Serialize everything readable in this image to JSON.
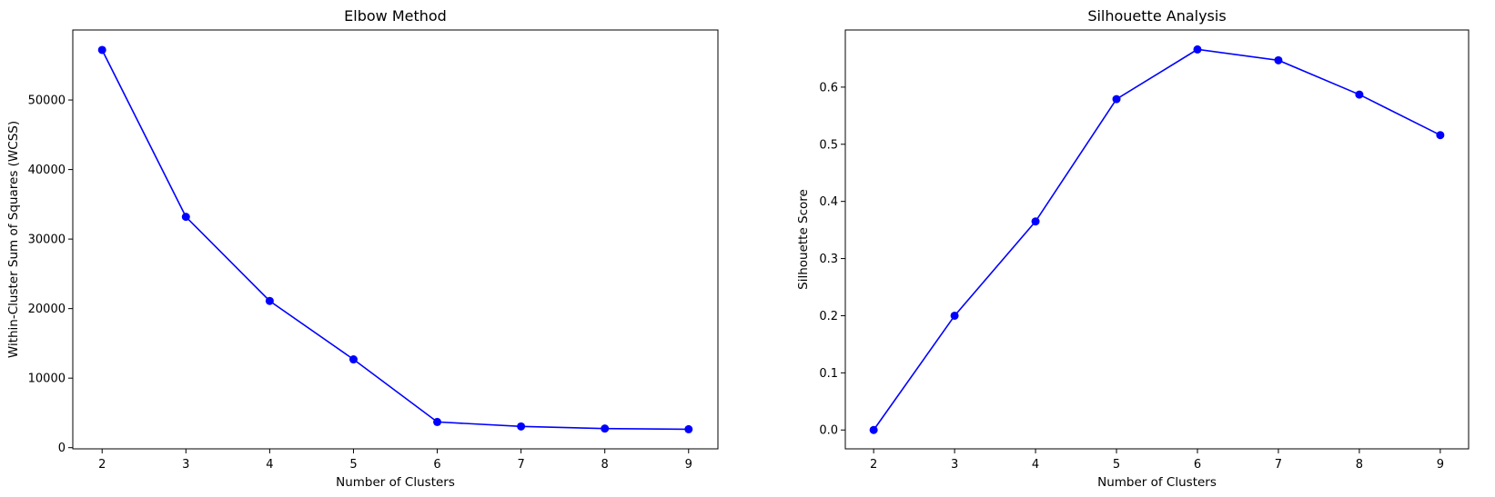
{
  "chart_data": [
    {
      "type": "line",
      "title": "Elbow Method",
      "xlabel": "Number of Clusters",
      "ylabel": "Within-Cluster Sum of Squares (WCSS)",
      "x": [
        2,
        3,
        4,
        5,
        6,
        7,
        8,
        9
      ],
      "series": [
        {
          "values": [
            57200,
            33200,
            21100,
            12700,
            3700,
            3050,
            2750,
            2650
          ],
          "color": "#0000ff",
          "marker": "circle"
        }
      ],
      "xticks": [
        2,
        3,
        4,
        5,
        6,
        7,
        8,
        9
      ],
      "yticks": [
        0,
        10000,
        20000,
        30000,
        40000,
        50000
      ],
      "xlim": [
        1.65,
        9.35
      ],
      "ylim": [
        -170,
        60070
      ],
      "grid": false
    },
    {
      "type": "line",
      "title": "Silhouette Analysis",
      "xlabel": "Number of Clusters",
      "ylabel": "Silhouette Score",
      "x": [
        2,
        3,
        4,
        5,
        6,
        7,
        8,
        9
      ],
      "series": [
        {
          "values": [
            0.0,
            0.2,
            0.365,
            0.579,
            0.666,
            0.647,
            0.587,
            0.516
          ],
          "color": "#0000ff",
          "marker": "circle"
        }
      ],
      "xticks": [
        2,
        3,
        4,
        5,
        6,
        7,
        8,
        9
      ],
      "yticks": [
        0.0,
        0.1,
        0.2,
        0.3,
        0.4,
        0.5,
        0.6
      ],
      "ytick_labels": [
        "0.0",
        "0.1",
        "0.2",
        "0.3",
        "0.4",
        "0.5",
        "0.6"
      ],
      "xlim": [
        1.65,
        9.35
      ],
      "ylim": [
        -0.033,
        0.7
      ],
      "grid": false
    }
  ]
}
